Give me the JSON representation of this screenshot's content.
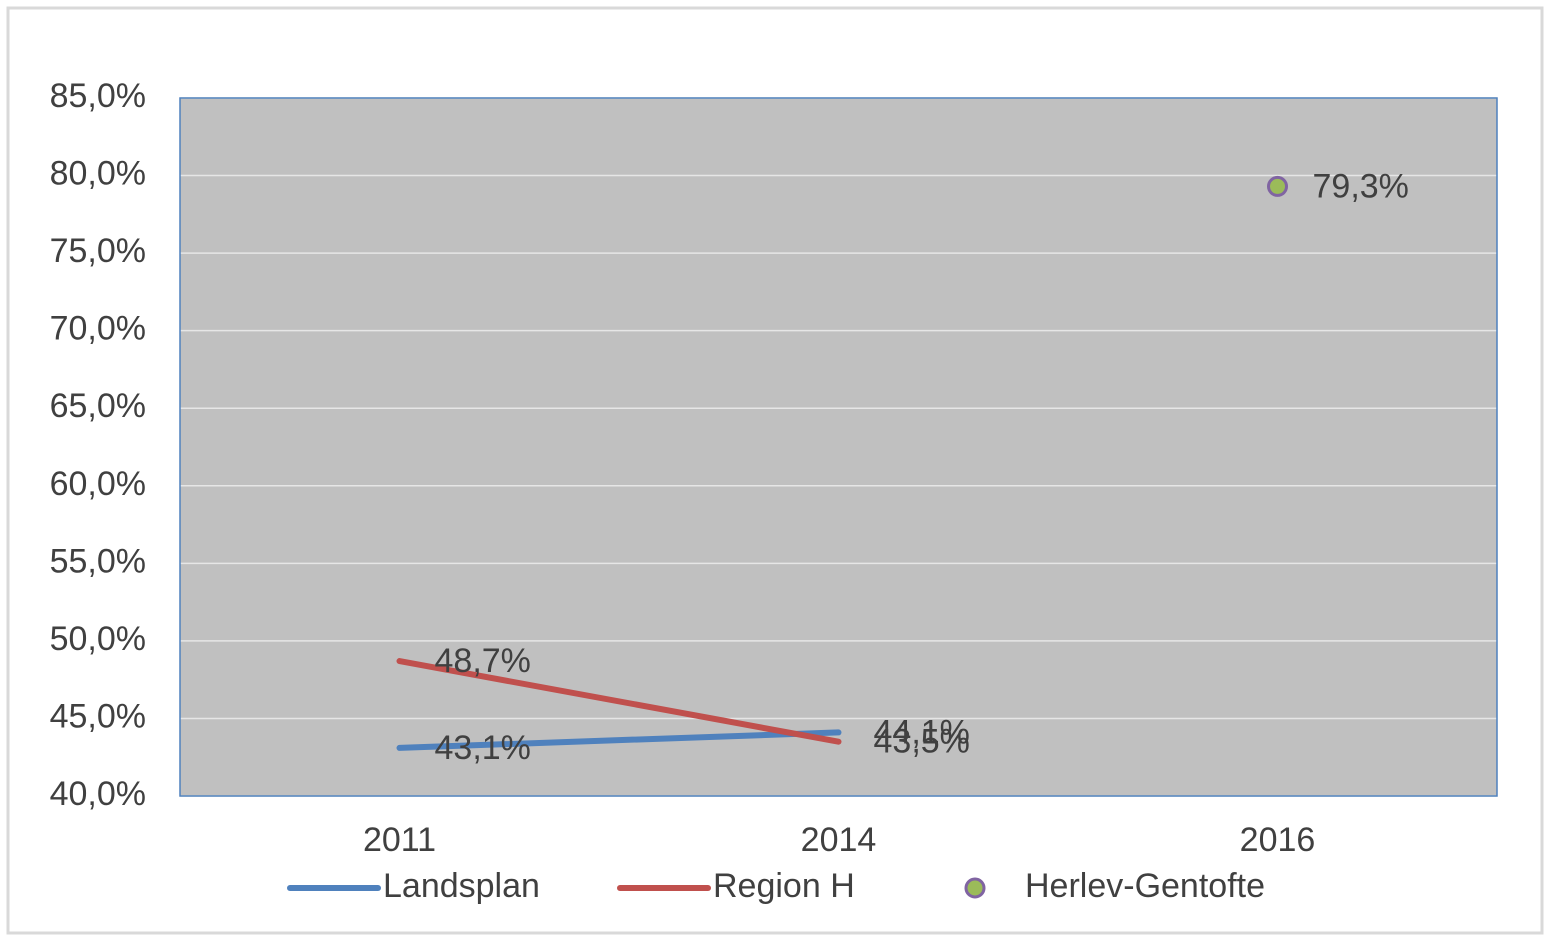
{
  "chart_data": {
    "type": "line",
    "categories": [
      "2011",
      "2014",
      "2016"
    ],
    "series": [
      {
        "name": "Landsplan",
        "color": "#4f81bd",
        "style": "line",
        "values": [
          43.1,
          44.1,
          null
        ],
        "value_labels": [
          "43,1%",
          "44,1%",
          null
        ]
      },
      {
        "name": "Region H",
        "color": "#c0504d",
        "style": "line",
        "values": [
          48.7,
          43.5,
          null
        ],
        "value_labels": [
          "48,7%",
          "43,5%",
          null
        ]
      },
      {
        "name": "Herlev-Gentofte",
        "color": "#9bbb59",
        "edge_color": "#8064a2",
        "style": "marker",
        "values": [
          null,
          null,
          79.3
        ],
        "value_labels": [
          null,
          null,
          "79,3%"
        ]
      }
    ],
    "ylim": [
      40,
      85
    ],
    "yticks": [
      {
        "value": 40,
        "label": "40,0%"
      },
      {
        "value": 45,
        "label": "45,0%"
      },
      {
        "value": 50,
        "label": "50,0%"
      },
      {
        "value": 55,
        "label": "55,0%"
      },
      {
        "value": 60,
        "label": "60,0%"
      },
      {
        "value": 65,
        "label": "65,0%"
      },
      {
        "value": 70,
        "label": "70,0%"
      },
      {
        "value": 75,
        "label": "75,0%"
      },
      {
        "value": 80,
        "label": "80,0%"
      },
      {
        "value": 85,
        "label": "85,0%"
      }
    ],
    "grid": true,
    "legend": "bottom"
  }
}
